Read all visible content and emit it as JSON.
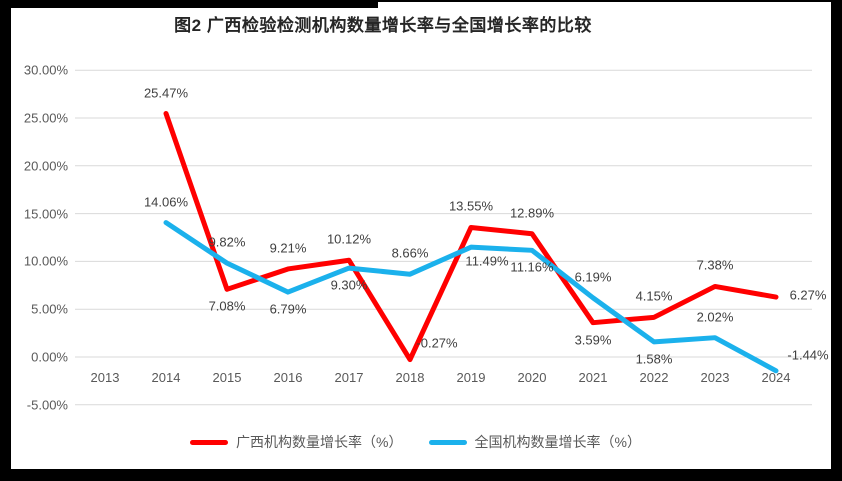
{
  "window": {
    "frame_color": "#000000",
    "canvas_color": "#FFFFFF"
  },
  "colors": {
    "gridline": "#D9D9D9",
    "axis_text": "#595959",
    "data_label_text": "#3F3F3F",
    "title_text": "#262626",
    "guangxi_red": "#FF0000",
    "national_blue": "#1BB1EC"
  },
  "chart_data": {
    "type": "line",
    "title": "图2 广西检验检测机构数量增长率与全国增长率的比较",
    "categories": [
      "2013",
      "2014",
      "2015",
      "2016",
      "2017",
      "2018",
      "2019",
      "2020",
      "2021",
      "2022",
      "2023",
      "2024"
    ],
    "y_axis": {
      "ylim": [
        -5,
        30
      ],
      "tick_step": 5,
      "grid": true,
      "ticks": [
        {
          "value": 30,
          "label": "30.00%"
        },
        {
          "value": 25,
          "label": "25.00%"
        },
        {
          "value": 20,
          "label": "20.00%"
        },
        {
          "value": 15,
          "label": "15.00%"
        },
        {
          "value": 10,
          "label": "10.00%"
        },
        {
          "value": 5,
          "label": "5.00%"
        },
        {
          "value": 0,
          "label": "0.00%"
        },
        {
          "value": -5,
          "label": "-5.00%"
        }
      ]
    },
    "legend_position": "bottom",
    "series": [
      {
        "name": "广西机构数量增长率（%）",
        "color": "#FF0000",
        "values": [
          null,
          25.47,
          7.08,
          9.21,
          10.12,
          -0.27,
          13.55,
          12.89,
          3.59,
          4.15,
          7.38,
          6.27
        ],
        "labels": [
          null,
          "25.47%",
          "7.08%",
          "9.21%",
          "10.12%",
          "-0.27%",
          "13.55%",
          "12.89%",
          "3.59%",
          "4.15%",
          "7.38%",
          "6.27%"
        ],
        "label_positions": [
          null,
          "above",
          "below",
          "above",
          "above",
          "above-right",
          "above",
          "above",
          "below",
          "above",
          "above",
          "right"
        ]
      },
      {
        "name": "全国机构数量增长率（%）",
        "color": "#1BB1EC",
        "values": [
          null,
          14.06,
          9.82,
          6.79,
          9.3,
          8.66,
          11.49,
          11.16,
          6.19,
          1.58,
          2.02,
          -1.44
        ],
        "labels": [
          null,
          "14.06%",
          "9.82%",
          "6.79%",
          "9.30%",
          "8.66%",
          "11.49%",
          "11.16%",
          "6.19%",
          "1.58%",
          "2.02%",
          "-1.44%"
        ],
        "label_positions": [
          null,
          "above",
          "above",
          "below",
          "below",
          "above",
          "below-right",
          "below",
          "above",
          "below",
          "above",
          "right-up"
        ]
      }
    ]
  }
}
